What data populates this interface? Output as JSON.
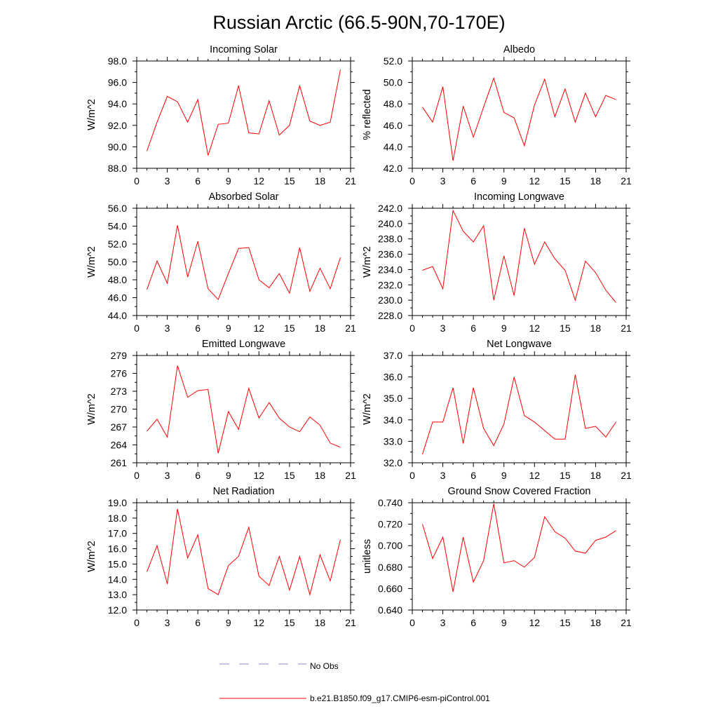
{
  "figure": {
    "title": "Russian Arctic (66.5-90N,70-170E)",
    "line_color": "#ff0000",
    "obs_color": "#8888cc"
  },
  "legend": {
    "obs_label": "No Obs",
    "model_label": "b.e21.B1850.f09_g17.CMIP6-esm-piControl.001"
  },
  "chart_data": [
    {
      "type": "line",
      "title": "Incoming Solar",
      "ylabel": "W/m^2",
      "xlim": [
        0,
        21
      ],
      "ylim": [
        88,
        98
      ],
      "yticks": [
        "98.0",
        "96.0",
        "94.0",
        "92.0",
        "90.0",
        "88.0"
      ],
      "xticks": [
        "0",
        "3",
        "6",
        "9",
        "12",
        "15",
        "18",
        "21"
      ],
      "x": [
        1,
        2,
        3,
        4,
        5,
        6,
        7,
        8,
        9,
        10,
        11,
        12,
        13,
        14,
        15,
        16,
        17,
        18,
        19,
        20
      ],
      "series": [
        {
          "name": "b.e21.B1850.f09_g17.CMIP6-esm-piControl.001",
          "values": [
            89.6,
            92.3,
            94.7,
            94.2,
            92.3,
            94.4,
            89.2,
            92.1,
            92.2,
            95.7,
            91.3,
            91.2,
            94.3,
            91.1,
            92.0,
            95.7,
            92.4,
            92.0,
            92.3,
            97.2
          ]
        }
      ]
    },
    {
      "type": "line",
      "title": "Albedo",
      "ylabel": "% reflected",
      "xlim": [
        0,
        21
      ],
      "ylim": [
        42,
        52
      ],
      "yticks": [
        "52.0",
        "50.0",
        "48.0",
        "46.0",
        "44.0",
        "42.0"
      ],
      "xticks": [
        "0",
        "3",
        "6",
        "9",
        "12",
        "15",
        "18",
        "21"
      ],
      "x": [
        1,
        2,
        3,
        4,
        5,
        6,
        7,
        8,
        9,
        10,
        11,
        12,
        13,
        14,
        15,
        16,
        17,
        18,
        19,
        20
      ],
      "series": [
        {
          "name": "b.e21.B1850.f09_g17.CMIP6-esm-piControl.001",
          "values": [
            47.7,
            46.3,
            49.6,
            42.7,
            47.8,
            44.9,
            47.7,
            50.4,
            47.2,
            46.7,
            44.1,
            47.9,
            50.3,
            46.8,
            49.4,
            46.3,
            49.0,
            46.8,
            48.8,
            48.4
          ]
        }
      ]
    },
    {
      "type": "line",
      "title": "Absorbed Solar",
      "ylabel": "W/m^2",
      "xlim": [
        0,
        21
      ],
      "ylim": [
        44,
        56
      ],
      "yticks": [
        "56.0",
        "54.0",
        "52.0",
        "50.0",
        "48.0",
        "46.0",
        "44.0"
      ],
      "xticks": [
        "0",
        "3",
        "6",
        "9",
        "12",
        "15",
        "18",
        "21"
      ],
      "x": [
        1,
        2,
        3,
        4,
        5,
        6,
        7,
        8,
        9,
        10,
        11,
        12,
        13,
        14,
        15,
        16,
        17,
        18,
        19,
        20
      ],
      "series": [
        {
          "name": "b.e21.B1850.f09_g17.CMIP6-esm-piControl.001",
          "values": [
            46.9,
            50.1,
            47.6,
            54.1,
            48.3,
            52.3,
            47.0,
            45.8,
            48.7,
            51.5,
            51.6,
            48.0,
            47.1,
            48.7,
            46.5,
            51.6,
            46.7,
            49.3,
            47.0,
            50.5
          ]
        }
      ]
    },
    {
      "type": "line",
      "title": "Incoming Longwave",
      "ylabel": "W/m^2",
      "xlim": [
        0,
        21
      ],
      "ylim": [
        228,
        242
      ],
      "yticks": [
        "242.0",
        "240.0",
        "238.0",
        "236.0",
        "234.0",
        "232.0",
        "230.0",
        "228.0"
      ],
      "xticks": [
        "0",
        "3",
        "6",
        "9",
        "12",
        "15",
        "18",
        "21"
      ],
      "x": [
        1,
        2,
        3,
        4,
        5,
        6,
        7,
        8,
        9,
        10,
        11,
        12,
        13,
        14,
        15,
        16,
        17,
        18,
        19,
        20
      ],
      "series": [
        {
          "name": "b.e21.B1850.f09_g17.CMIP6-esm-piControl.001",
          "values": [
            233.9,
            234.4,
            231.5,
            241.7,
            239.0,
            237.6,
            239.7,
            230.0,
            235.8,
            230.6,
            239.4,
            234.7,
            237.6,
            235.4,
            233.9,
            230.0,
            235.1,
            233.6,
            231.3,
            229.7
          ]
        }
      ]
    },
    {
      "type": "line",
      "title": "Emitted Longwave",
      "ylabel": "W/m^2",
      "xlim": [
        0,
        21
      ],
      "ylim": [
        261,
        279
      ],
      "yticks": [
        "279",
        "276",
        "273",
        "270",
        "267",
        "264",
        "261"
      ],
      "xticks": [
        "0",
        "3",
        "6",
        "9",
        "12",
        "15",
        "18",
        "21"
      ],
      "x": [
        1,
        2,
        3,
        4,
        5,
        6,
        7,
        8,
        9,
        10,
        11,
        12,
        13,
        14,
        15,
        16,
        17,
        18,
        19,
        20
      ],
      "series": [
        {
          "name": "b.e21.B1850.f09_g17.CMIP6-esm-piControl.001",
          "values": [
            266.3,
            268.3,
            265.3,
            277.3,
            272.0,
            273.1,
            273.3,
            262.6,
            269.6,
            266.6,
            273.5,
            268.5,
            271.1,
            268.5,
            267.0,
            266.2,
            268.7,
            267.3,
            264.3,
            263.6
          ]
        }
      ]
    },
    {
      "type": "line",
      "title": "Net Longwave",
      "ylabel": "W/m^2",
      "xlim": [
        0,
        21
      ],
      "ylim": [
        32,
        37
      ],
      "yticks": [
        "37.0",
        "36.0",
        "35.0",
        "34.0",
        "33.0",
        "32.0"
      ],
      "xticks": [
        "0",
        "3",
        "6",
        "9",
        "12",
        "15",
        "18",
        "21"
      ],
      "x": [
        1,
        2,
        3,
        4,
        5,
        6,
        7,
        8,
        9,
        10,
        11,
        12,
        13,
        14,
        15,
        16,
        17,
        18,
        19,
        20
      ],
      "series": [
        {
          "name": "b.e21.B1850.f09_g17.CMIP6-esm-piControl.001",
          "values": [
            32.4,
            33.9,
            33.9,
            35.5,
            32.9,
            35.5,
            33.6,
            32.8,
            33.8,
            36.0,
            34.2,
            33.9,
            33.5,
            33.1,
            33.1,
            36.1,
            33.6,
            33.7,
            33.2,
            33.9
          ]
        }
      ]
    },
    {
      "type": "line",
      "title": "Net Radiation",
      "ylabel": "W/m^2",
      "xlim": [
        0,
        21
      ],
      "ylim": [
        12,
        19
      ],
      "yticks": [
        "19.0",
        "18.0",
        "17.0",
        "16.0",
        "15.0",
        "14.0",
        "13.0",
        "12.0"
      ],
      "xticks": [
        "0",
        "3",
        "6",
        "9",
        "12",
        "15",
        "18",
        "21"
      ],
      "x": [
        1,
        2,
        3,
        4,
        5,
        6,
        7,
        8,
        9,
        10,
        11,
        12,
        13,
        14,
        15,
        16,
        17,
        18,
        19,
        20
      ],
      "series": [
        {
          "name": "b.e21.B1850.f09_g17.CMIP6-esm-piControl.001",
          "values": [
            14.5,
            16.2,
            13.7,
            18.6,
            15.4,
            16.9,
            13.4,
            13.0,
            14.9,
            15.5,
            17.4,
            14.2,
            13.6,
            15.5,
            13.3,
            15.5,
            13.0,
            15.6,
            13.9,
            16.6
          ]
        }
      ]
    },
    {
      "type": "line",
      "title": "Ground Snow Covered Fraction",
      "ylabel": "unitless",
      "xlim": [
        0,
        21
      ],
      "ylim": [
        0.64,
        0.74
      ],
      "yticks": [
        "0.740",
        "0.720",
        "0.700",
        "0.680",
        "0.660",
        "0.640"
      ],
      "xticks": [
        "0",
        "3",
        "6",
        "9",
        "12",
        "15",
        "18",
        "21"
      ],
      "x": [
        1,
        2,
        3,
        4,
        5,
        6,
        7,
        8,
        9,
        10,
        11,
        12,
        13,
        14,
        15,
        16,
        17,
        18,
        19,
        20
      ],
      "series": [
        {
          "name": "b.e21.B1850.f09_g17.CMIP6-esm-piControl.001",
          "values": [
            0.72,
            0.688,
            0.708,
            0.657,
            0.708,
            0.666,
            0.686,
            0.739,
            0.684,
            0.686,
            0.68,
            0.689,
            0.727,
            0.713,
            0.707,
            0.695,
            0.693,
            0.705,
            0.708,
            0.714
          ]
        }
      ]
    }
  ]
}
